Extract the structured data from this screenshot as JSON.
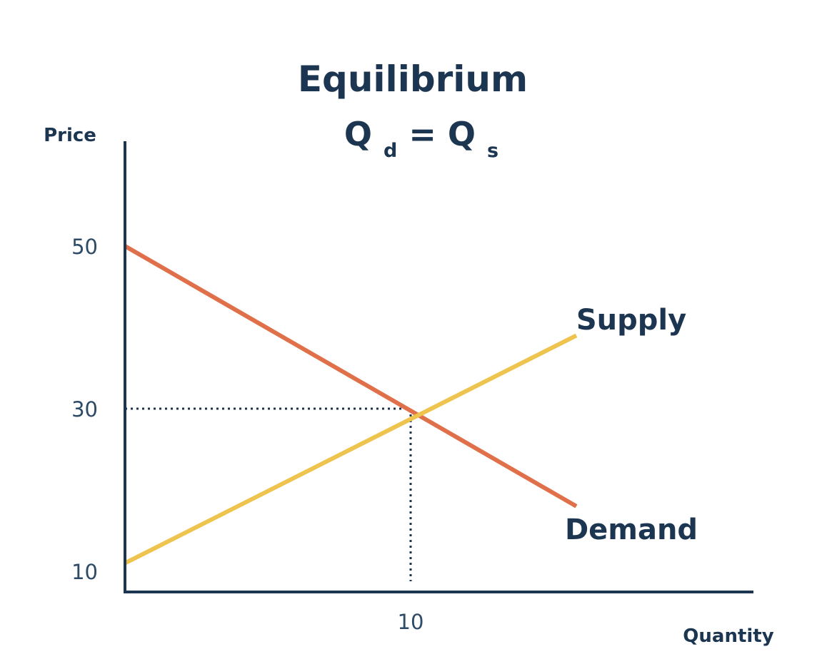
{
  "chart_data": {
    "type": "line",
    "title": {
      "line1": "Equilibrium",
      "line2": {
        "q1": "Q",
        "sub1": "d",
        "eq": " = ",
        "q2": "Q",
        "sub2": "s"
      }
    },
    "xlabel": "Quantity",
    "ylabel": "Price",
    "xlim": [
      0,
      22
    ],
    "ylim": [
      5,
      57
    ],
    "x_ticks": [
      {
        "value": 10,
        "label": "10"
      }
    ],
    "y_ticks": [
      {
        "value": 50,
        "label": "50"
      },
      {
        "value": 30,
        "label": "30"
      },
      {
        "value": 10,
        "label": "10"
      }
    ],
    "series": [
      {
        "name": "Demand",
        "color": "#e0704a",
        "points": [
          [
            0,
            50
          ],
          [
            15.8,
            18
          ]
        ]
      },
      {
        "name": "Supply",
        "color": "#eec44f",
        "points": [
          [
            0,
            11
          ],
          [
            15.8,
            39
          ]
        ]
      }
    ],
    "equilibrium": {
      "x": 10,
      "y": 30
    },
    "grid": false,
    "colors": {
      "axis": "#1c3651",
      "text": "#1c3651",
      "guide": "#1c3651"
    }
  }
}
